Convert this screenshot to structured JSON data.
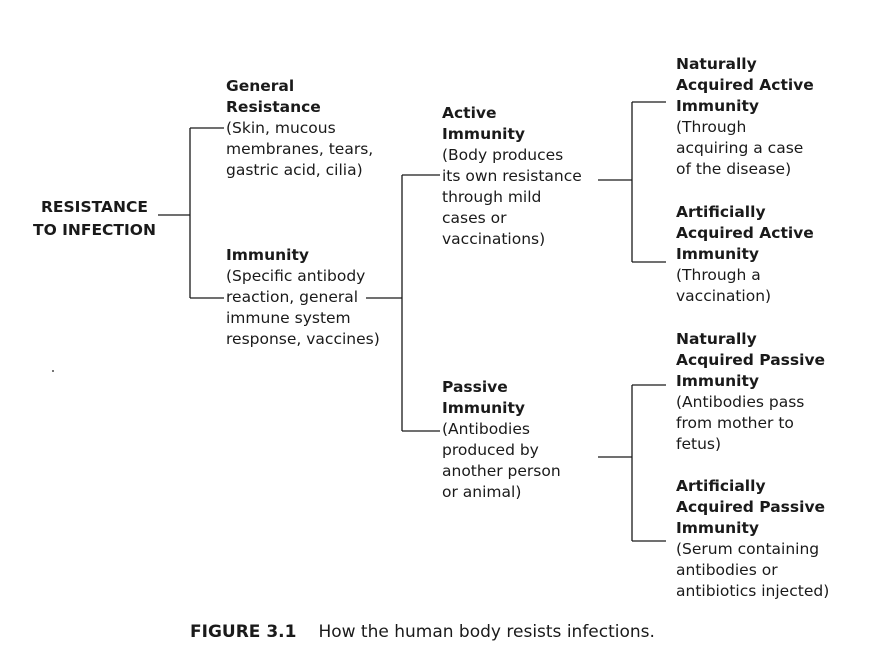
{
  "root": {
    "line1": "RESISTANCE",
    "line2": "TO INFECTION"
  },
  "general": {
    "title1": "General",
    "title2": "Resistance",
    "desc": [
      "(Skin, mucous",
      "membranes, tears,",
      "gastric acid, cilia)"
    ]
  },
  "immunity": {
    "title": "Immunity",
    "desc": [
      "(Specific antibody",
      "reaction, general",
      "immune system",
      "response, vaccines)"
    ]
  },
  "active": {
    "title1": "Active",
    "title2": "Immunity",
    "desc": [
      "(Body produces",
      "its own resistance",
      "through mild",
      "cases or",
      "vaccinations)"
    ]
  },
  "passive": {
    "title1": "Passive",
    "title2": "Immunity",
    "desc": [
      "(Antibodies",
      "produced by",
      "another person",
      "or animal)"
    ]
  },
  "nat_active": {
    "title": [
      "Naturally",
      "Acquired Active",
      "Immunity"
    ],
    "desc": [
      "(Through",
      "acquiring a case",
      "of the disease)"
    ]
  },
  "art_active": {
    "title": [
      "Artificially",
      "Acquired Active",
      "Immunity"
    ],
    "desc": [
      "(Through a",
      "vaccination)"
    ]
  },
  "nat_passive": {
    "title": [
      "Naturally",
      "Acquired Passive",
      "Immunity"
    ],
    "desc": [
      "(Antibodies pass",
      "from mother to",
      "fetus)"
    ]
  },
  "art_passive": {
    "title": [
      "Artificially",
      "Acquired Passive",
      "Immunity"
    ],
    "desc": [
      "(Serum containing",
      "antibodies or",
      "antibiotics injected)"
    ]
  },
  "caption": {
    "number": "FIGURE 3.1",
    "text": "How the human body resists infections."
  }
}
